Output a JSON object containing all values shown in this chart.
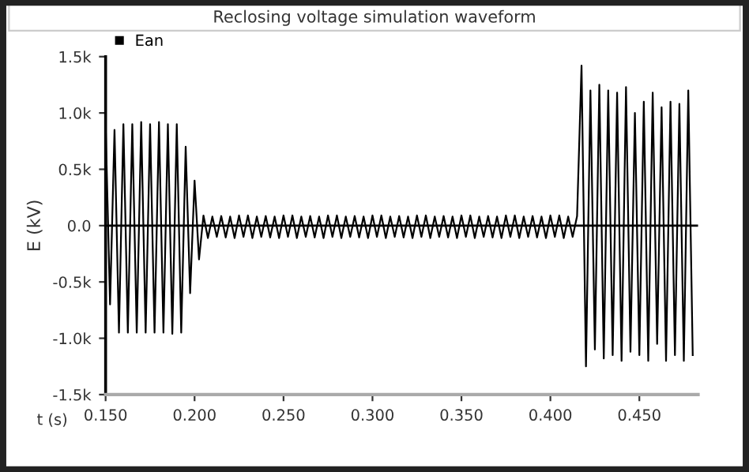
{
  "chart_data": {
    "type": "line",
    "title": "Reclosing voltage simulation waveform",
    "xlabel": "t (s)",
    "ylabel": "E (kV)",
    "xlim": [
      0.15,
      0.483
    ],
    "ylim": [
      -1500,
      1500
    ],
    "xticks": [
      {
        "value": 0.15,
        "label": "0.150"
      },
      {
        "value": 0.2,
        "label": "0.200"
      },
      {
        "value": 0.25,
        "label": "0.250"
      },
      {
        "value": 0.3,
        "label": "0.300"
      },
      {
        "value": 0.35,
        "label": "0.350"
      },
      {
        "value": 0.4,
        "label": "0.400"
      },
      {
        "value": 0.45,
        "label": "0.450"
      }
    ],
    "yticks": [
      {
        "value": 1500,
        "label": "1.5k"
      },
      {
        "value": 1000,
        "label": "1.0k"
      },
      {
        "value": 500,
        "label": "0.5k"
      },
      {
        "value": 0,
        "label": "0.0"
      },
      {
        "value": -500,
        "label": "-0.5k"
      },
      {
        "value": -1000,
        "label": "-1.0k"
      },
      {
        "value": -1500,
        "label": "-1.5k"
      }
    ],
    "grid": false,
    "legend": "top left",
    "marker": "none",
    "line_style": "solid",
    "ref_lines": [
      {
        "axis": "y",
        "value": 0,
        "color": "#000000"
      }
    ],
    "series": [
      {
        "name": "Ean",
        "color": "#000000",
        "x": [
          0.15,
          0.1525,
          0.155,
          0.1575,
          0.16,
          0.1625,
          0.165,
          0.1675,
          0.17,
          0.1725,
          0.175,
          0.1775,
          0.18,
          0.1825,
          0.185,
          0.1875,
          0.19,
          0.1925,
          0.195,
          0.1975,
          0.2,
          0.2025,
          0.205,
          0.2075,
          0.21,
          0.2125,
          0.215,
          0.2175,
          0.22,
          0.2225,
          0.225,
          0.2275,
          0.23,
          0.2325,
          0.235,
          0.2375,
          0.24,
          0.2425,
          0.245,
          0.2475,
          0.25,
          0.2525,
          0.255,
          0.2575,
          0.26,
          0.2625,
          0.265,
          0.2675,
          0.27,
          0.2725,
          0.275,
          0.2775,
          0.28,
          0.2825,
          0.285,
          0.2875,
          0.29,
          0.2925,
          0.295,
          0.2975,
          0.3,
          0.3025,
          0.305,
          0.3075,
          0.31,
          0.3125,
          0.315,
          0.3175,
          0.32,
          0.3225,
          0.325,
          0.3275,
          0.33,
          0.3325,
          0.335,
          0.3375,
          0.34,
          0.3425,
          0.345,
          0.3475,
          0.35,
          0.3525,
          0.355,
          0.3575,
          0.36,
          0.3625,
          0.365,
          0.3675,
          0.37,
          0.3725,
          0.375,
          0.3775,
          0.38,
          0.3825,
          0.385,
          0.3875,
          0.39,
          0.3925,
          0.395,
          0.3975,
          0.4,
          0.4025,
          0.405,
          0.4075,
          0.41,
          0.4125,
          0.415,
          0.4175,
          0.42,
          0.4225,
          0.425,
          0.4275,
          0.43,
          0.4325,
          0.435,
          0.4375,
          0.44,
          0.4425,
          0.445,
          0.4475,
          0.45,
          0.4525,
          0.455,
          0.4575,
          0.46,
          0.4625,
          0.465,
          0.4675,
          0.47,
          0.4725,
          0.475,
          0.4775,
          0.48
        ],
        "values": [
          900,
          -700,
          850,
          -950,
          900,
          -950,
          900,
          -950,
          920,
          -950,
          900,
          -950,
          920,
          -950,
          900,
          -960,
          900,
          -950,
          700,
          -600,
          400,
          -300,
          90,
          -110,
          80,
          -100,
          85,
          -105,
          80,
          -110,
          90,
          -100,
          90,
          -110,
          80,
          -100,
          85,
          -105,
          80,
          -110,
          90,
          -100,
          90,
          -110,
          80,
          -100,
          85,
          -105,
          80,
          -110,
          90,
          -100,
          90,
          -110,
          80,
          -100,
          85,
          -105,
          80,
          -110,
          90,
          -100,
          90,
          -110,
          80,
          -100,
          85,
          -105,
          80,
          -110,
          90,
          -100,
          90,
          -110,
          80,
          -100,
          85,
          -105,
          80,
          -110,
          90,
          -100,
          90,
          -110,
          80,
          -100,
          85,
          -105,
          80,
          -110,
          90,
          -100,
          90,
          -110,
          80,
          -100,
          85,
          -105,
          80,
          -110,
          90,
          -100,
          90,
          -110,
          80,
          -100,
          85,
          1420,
          -1250,
          1200,
          -1100,
          1250,
          -1180,
          1200,
          -1150,
          1180,
          -1200,
          1230,
          -1120,
          1000,
          -1150,
          1100,
          -1200,
          1180,
          -1050,
          1050,
          -1200,
          1100,
          -1150,
          1080,
          -1200,
          1200,
          -1150
        ]
      }
    ]
  }
}
